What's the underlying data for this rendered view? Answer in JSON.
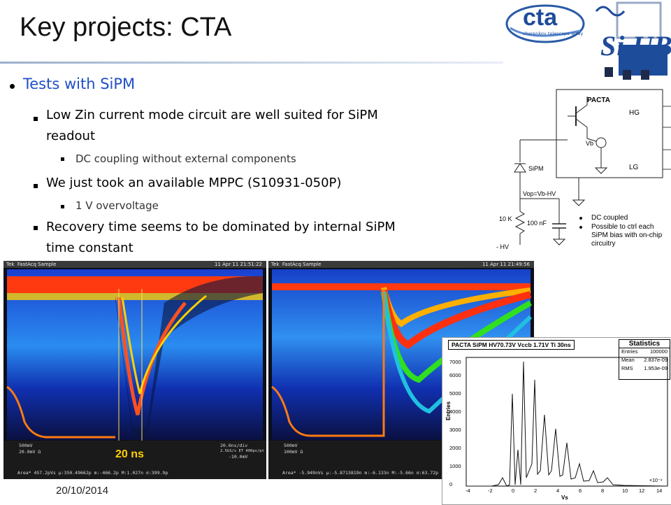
{
  "title": "Key projects: CTA",
  "date": "20/10/2014",
  "bullets": {
    "l1": "Tests with SiPM",
    "a1": "Low Zin current mode circuit are well suited for SiPM",
    "a2": "readout",
    "a_sub": "DC coupling without external components",
    "b": "We just took an available MPPC (S10931-050P)",
    "b_sub": "1 V overvoltage",
    "c1": "Recovery time seems to be dominated by internal SiPM",
    "c2": "time constant"
  },
  "logos": {
    "cta_big": "cta",
    "cta_small": "cherenkov telescope array",
    "siub": "Si UB"
  },
  "circuit": {
    "title": "PACTA",
    "hg": "HG",
    "lg": "LG",
    "vb": "Vb",
    "sipm": "SiPM",
    "vop": "Vop=Vb-HV",
    "r": "10 K",
    "c": "100 nF",
    "hv": "- HV",
    "notes": [
      "DC coupled",
      "Possible to ctrl each SiPM bias with on-chip circuitry"
    ]
  },
  "scope1": {
    "header_brand": "Tek",
    "header_mode": "FastAcq Sample",
    "header_date": "11 Apr 11 21:51:22",
    "ch1": "500mV",
    "ch3": "20.0mV  Ω",
    "timebase": "20.0ns/div",
    "rate": "2.5GS/s  ET 400ps/pt",
    "trig": "-10.0mV",
    "meas": "Area*   457.2pVs  μ:350.49662p  m:-466.2p  M:1.027n  σ:399.9p",
    "annotation": "20 ns"
  },
  "scope2": {
    "header_brand": "Tek",
    "header_mode": "FastAcq Sample",
    "header_date": "11 Apr 11 21:49:56",
    "ch1": "500mV",
    "ch3": "100mV  Ω",
    "meas": "Area*   -5.949nVs  μ:-5.8713819n  m:-6.133n  M:-5.66n  σ:63.72p"
  },
  "histogram": {
    "title": "PACTA SiPM HV70.73V Vccb 1.71V Ti 30ns",
    "stats_title": "Statistics",
    "stats": [
      [
        "Entries",
        "100000"
      ],
      [
        "Mean",
        "2.837e-09"
      ],
      [
        "RMS",
        "1.953e-09"
      ]
    ],
    "ylabel": "Entries",
    "xlabel": "Vs",
    "xexp": "×10⁻⁹",
    "yticks": [
      "0",
      "1000",
      "2000",
      "3000",
      "4000",
      "5000",
      "6000",
      "7000"
    ],
    "xticks": [
      "-4",
      "-2",
      "0",
      "2",
      "4",
      "6",
      "8",
      "10",
      "12",
      "14"
    ]
  }
}
